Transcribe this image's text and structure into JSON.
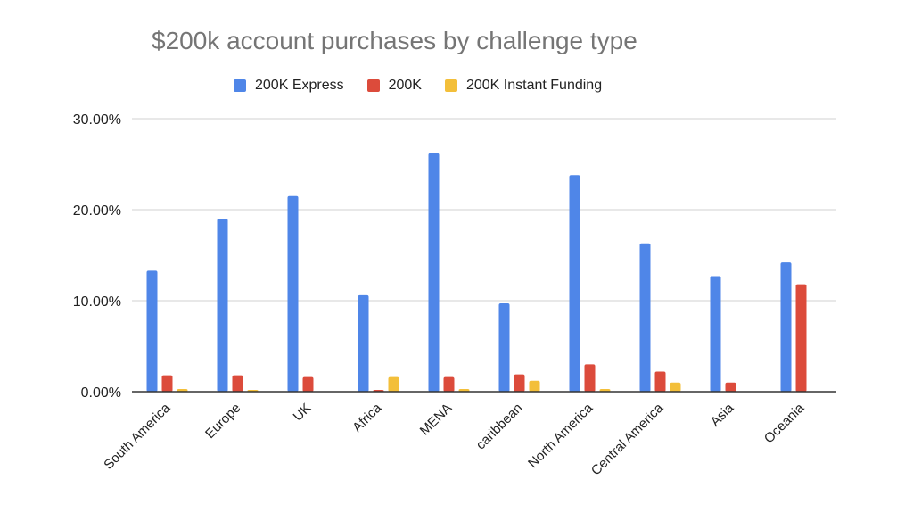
{
  "chart_data": {
    "type": "bar",
    "title": "$200k account purchases by challenge type",
    "xlabel": "",
    "ylabel": "",
    "ylim": [
      0,
      30
    ],
    "y_ticks": [
      "0.00%",
      "10.00%",
      "20.00%",
      "30.00%"
    ],
    "y_tick_values": [
      0,
      10,
      20,
      30
    ],
    "grid": true,
    "legend_position": "top",
    "categories": [
      "South America",
      "Europe",
      "UK",
      "Africa",
      "MENA",
      "caribbean",
      "North America",
      "Central America",
      "Asia",
      "Oceania"
    ],
    "series": [
      {
        "name": "200K Express",
        "color": "#4f86e8",
        "values": [
          13.3,
          19.0,
          21.5,
          10.6,
          26.2,
          9.7,
          23.8,
          16.3,
          12.7,
          14.2
        ]
      },
      {
        "name": "200K",
        "color": "#dc4b3b",
        "values": [
          1.8,
          1.8,
          1.6,
          0.2,
          1.6,
          1.9,
          3.0,
          2.2,
          1.0,
          11.8
        ]
      },
      {
        "name": "200K Instant Funding",
        "color": "#f3bf3a",
        "values": [
          0.3,
          0.2,
          0.0,
          1.6,
          0.3,
          1.2,
          0.3,
          1.0,
          0.0,
          0.0
        ]
      }
    ]
  }
}
